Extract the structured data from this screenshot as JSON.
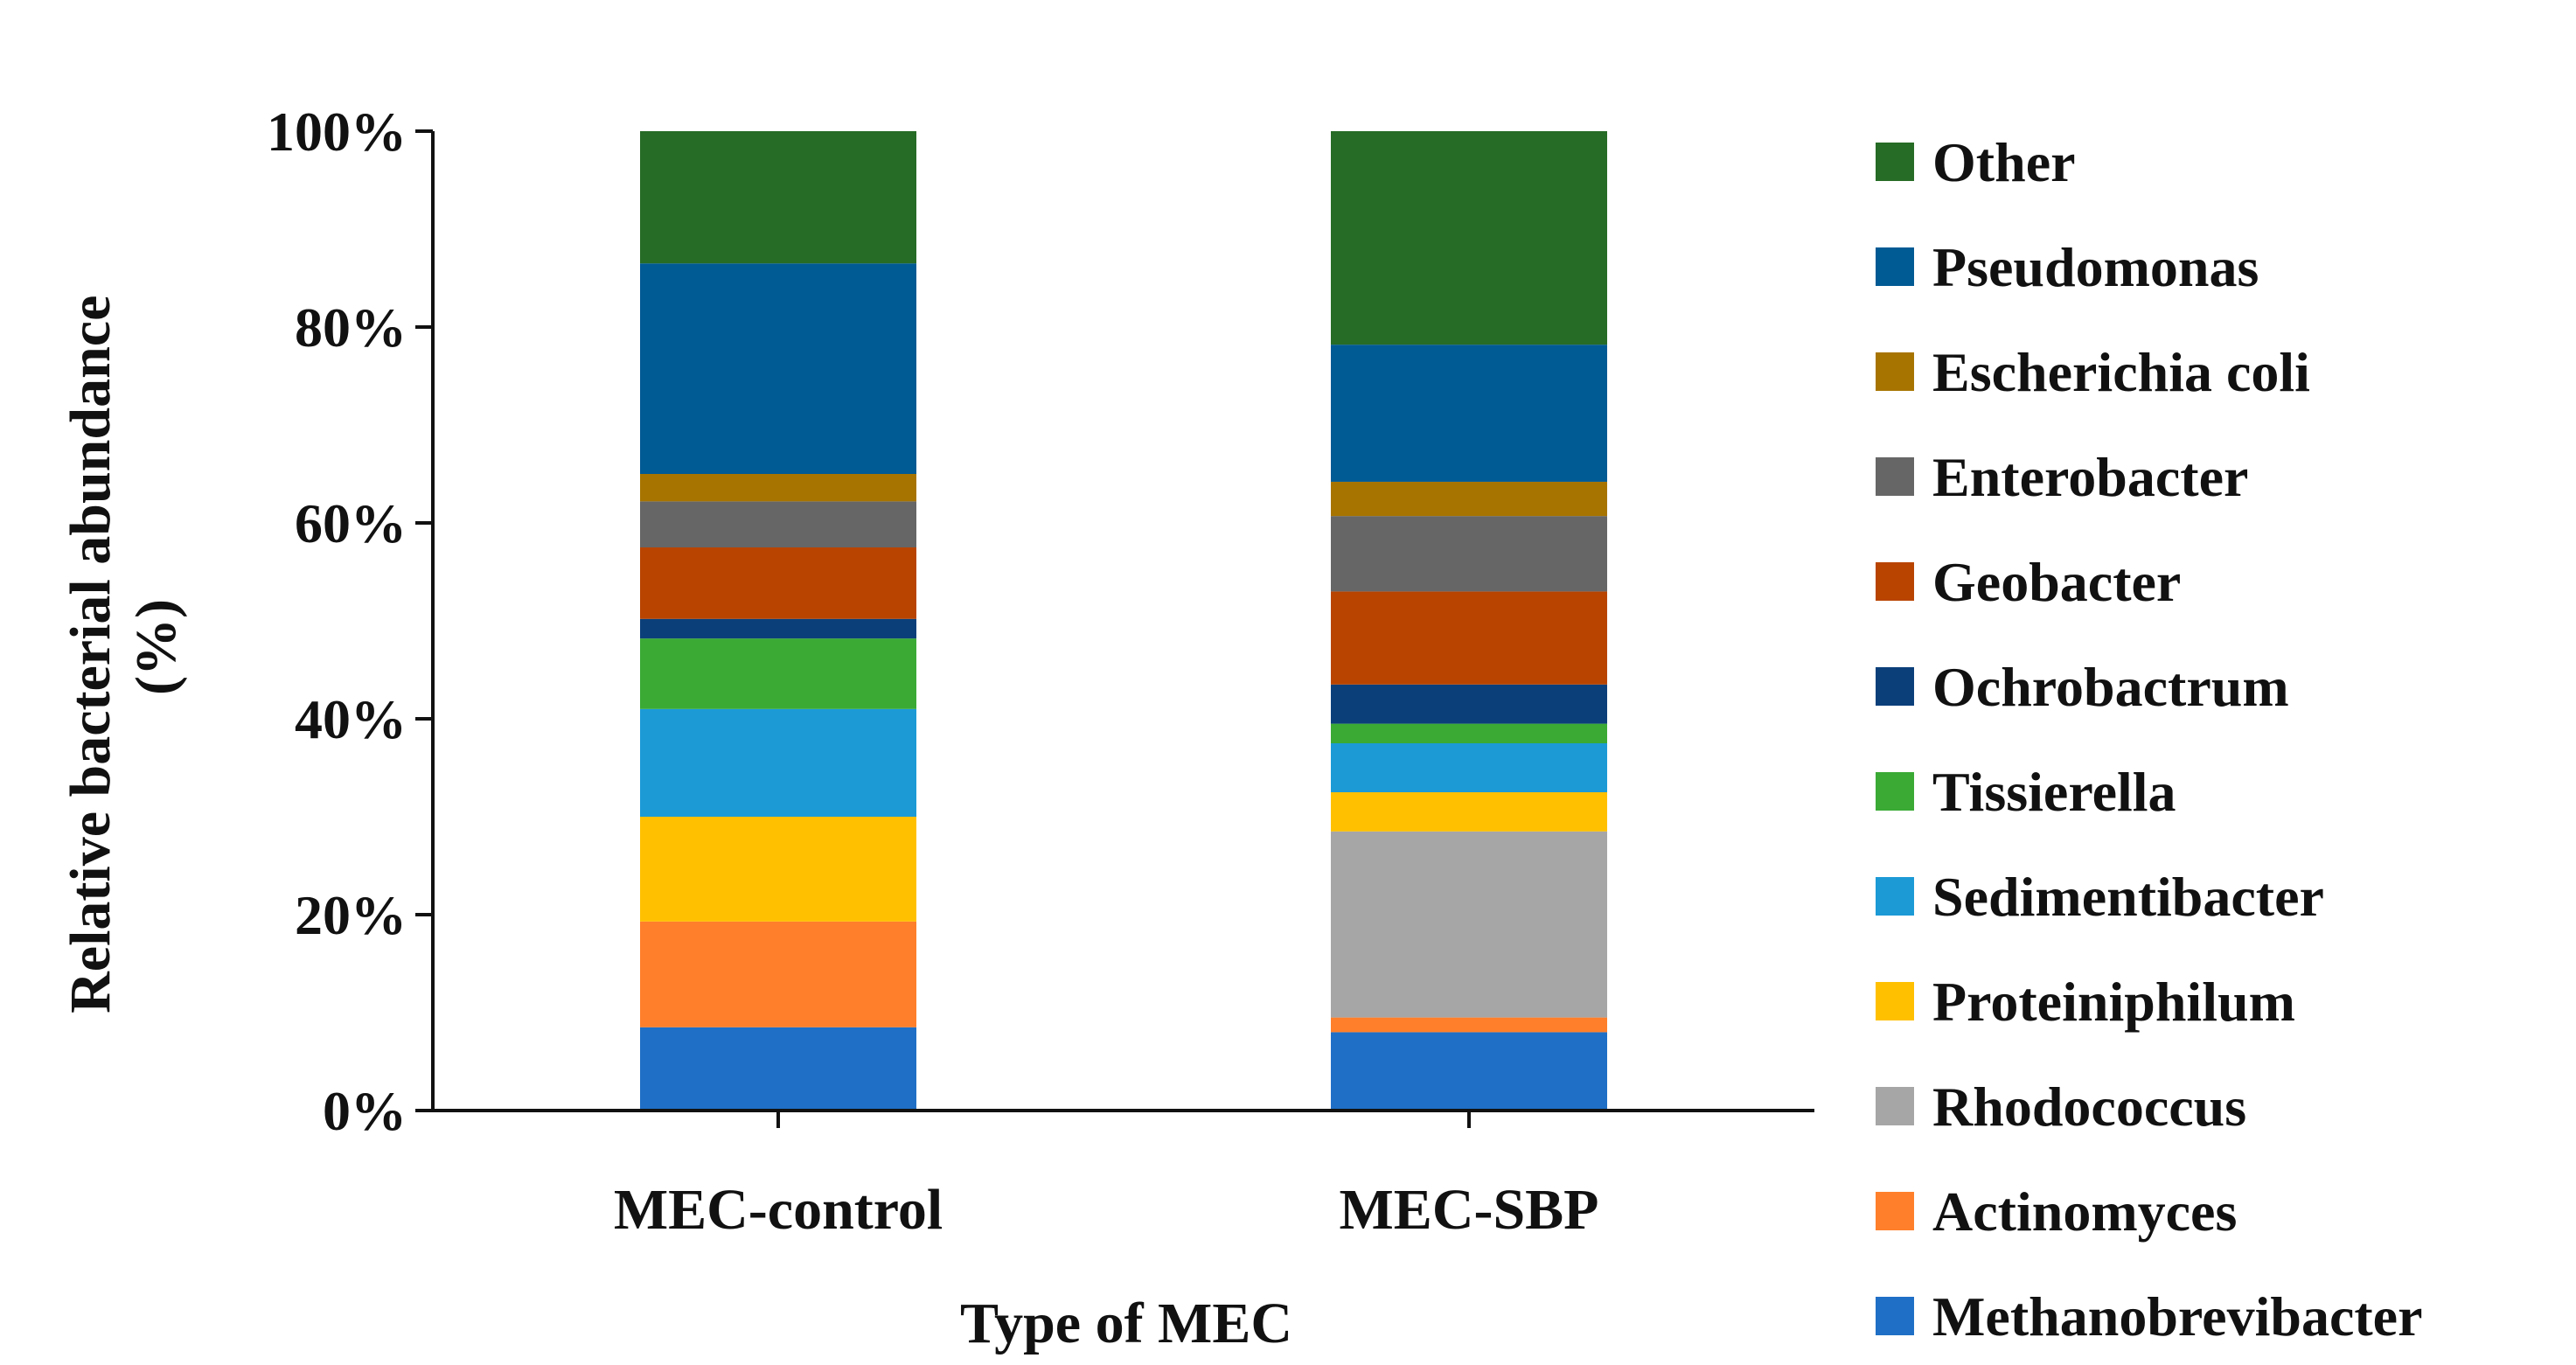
{
  "chart_data": {
    "type": "bar",
    "stacked": true,
    "percent": true,
    "categories": [
      "MEC-control",
      "MEC-SBP"
    ],
    "xlabel": "Type of MEC",
    "ylabel": "Relative bacterial abundance (%)",
    "ylabel_lines": [
      "Relative bacterial abundance",
      "(%)"
    ],
    "ylim": [
      0,
      100
    ],
    "yticks": [
      0,
      20,
      40,
      60,
      80,
      100
    ],
    "ytick_labels": [
      "0%",
      "20%",
      "40%",
      "60%",
      "80%",
      "100%"
    ],
    "grid": false,
    "legend_position": "right",
    "series": [
      {
        "name": "Methanobrevibacter",
        "color": "#1f6fc6",
        "values": [
          8.5,
          8.0
        ]
      },
      {
        "name": "Actinomyces",
        "color": "#ff7f2a",
        "values": [
          10.8,
          1.5
        ]
      },
      {
        "name": "Rhodococcus",
        "color": "#a6a6a6",
        "values": [
          0.0,
          19.0
        ]
      },
      {
        "name": "Proteiniphilum",
        "color": "#ffc000",
        "values": [
          10.7,
          4.0
        ]
      },
      {
        "name": "Sedimentibacter",
        "color": "#1b9ad6",
        "values": [
          11.0,
          5.0
        ]
      },
      {
        "name": "Tissierella",
        "color": "#3aaa35",
        "values": [
          7.2,
          2.0
        ]
      },
      {
        "name": "Ochrobactrum",
        "color": "#0b3f7a",
        "values": [
          2.0,
          4.0
        ]
      },
      {
        "name": "Geobacter",
        "color": "#b84400",
        "values": [
          7.3,
          9.5
        ]
      },
      {
        "name": "Enterobacter",
        "color": "#666666",
        "values": [
          4.7,
          7.7
        ]
      },
      {
        "name": "Escherichia coli",
        "color": "#a87400",
        "values": [
          2.8,
          3.5
        ]
      },
      {
        "name": "Pseudomonas",
        "color": "#005a94",
        "values": [
          21.5,
          14.0
        ]
      },
      {
        "name": "Other",
        "color": "#266b26",
        "values": [
          13.5,
          21.8
        ]
      }
    ]
  }
}
